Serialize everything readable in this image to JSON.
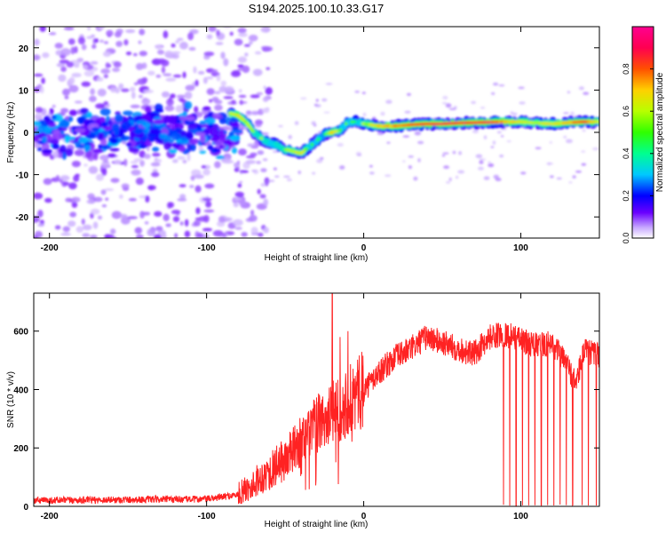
{
  "title": "S194.2025.100.10.33.G17",
  "chart_data": [
    {
      "type": "heatmap",
      "xlabel": "Height of straight line (km)",
      "ylabel": "Frequency (Hz)",
      "xlim": [
        -210,
        150
      ],
      "ylim": [
        -25,
        25
      ],
      "xticks": [
        -200,
        -100,
        0,
        100
      ],
      "yticks": [
        -20,
        -10,
        0,
        10,
        20
      ],
      "colorbar": {
        "label": "Normalized spectral amplitude",
        "range": [
          0,
          1
        ],
        "ticks": [
          "0.0",
          "0.2",
          "0.4",
          "0.6",
          "0.8"
        ],
        "colors": [
          "#ffffff",
          "#b388ff",
          "#5b00ff",
          "#0000ff",
          "#00ccff",
          "#00ff88",
          "#33ff00",
          "#ccff00",
          "#ffcc00",
          "#ff4400",
          "#ff0066",
          "#ff00aa"
        ]
      },
      "ridge": {
        "x": [
          -85,
          -80,
          -75,
          -70,
          -65,
          -60,
          -55,
          -50,
          -45,
          -40,
          -35,
          -30,
          -25,
          -20,
          -15,
          -10,
          -5,
          0,
          10,
          20,
          30,
          40,
          50,
          60,
          70,
          80,
          90,
          100,
          110,
          120,
          130,
          140,
          150
        ],
        "freq": [
          4.5,
          4.0,
          2.5,
          0.0,
          -1.5,
          -2.5,
          -3.0,
          -4.0,
          -4.5,
          -5.0,
          -3.5,
          -2.0,
          -0.5,
          0.0,
          0.5,
          2.5,
          2.5,
          2.0,
          1.5,
          1.5,
          1.8,
          2.0,
          2.0,
          2.2,
          2.3,
          2.4,
          2.5,
          2.5,
          2.2,
          2.0,
          2.3,
          2.5,
          2.5
        ],
        "amplitude": [
          0.6,
          0.65,
          0.6,
          0.55,
          0.55,
          0.5,
          0.5,
          0.55,
          0.6,
          0.65,
          0.5,
          0.45,
          0.4,
          0.75,
          0.5,
          0.5,
          0.45,
          0.55,
          0.7,
          0.75,
          0.8,
          0.85,
          0.9,
          0.9,
          0.85,
          0.9,
          0.7,
          0.65,
          0.6,
          0.65,
          0.7,
          0.85,
          0.6
        ]
      },
      "noise": {
        "band_x": [
          -210,
          -80
        ],
        "band_freq": [
          -7,
          7
        ],
        "band_amplitude": 0.22
      }
    },
    {
      "type": "line",
      "xlabel": "Height of straight line (km)",
      "ylabel": "SNR (10 * v/v)",
      "xlim": [
        -210,
        150
      ],
      "ylim": [
        0,
        730
      ],
      "xticks": [
        -200,
        -100,
        0,
        100
      ],
      "yticks": [
        0,
        200,
        400,
        600
      ],
      "color": "#ff2222",
      "series": [
        {
          "x": [
            -210,
            -100,
            -80,
            -70,
            -60,
            -50,
            -40,
            -30,
            -20,
            -10,
            0,
            10,
            20,
            30,
            40,
            50,
            60,
            70,
            80,
            90,
            100,
            110,
            120,
            130,
            135,
            140,
            150
          ],
          "values": [
            20,
            25,
            40,
            80,
            120,
            160,
            220,
            280,
            320,
            360,
            400,
            460,
            510,
            540,
            580,
            560,
            540,
            520,
            580,
            590,
            570,
            550,
            560,
            480,
            420,
            530,
            520
          ]
        }
      ],
      "spikes": {
        "x": [
          -20,
          -15,
          -10
        ],
        "values": [
          730,
          580,
          600
        ]
      },
      "dropouts": {
        "x": [
          89,
          93,
          97,
          101,
          105,
          109,
          113,
          117,
          121,
          125,
          129,
          133,
          139,
          143,
          148
        ],
        "values": [
          0,
          0,
          0,
          0,
          0,
          0,
          0,
          0,
          0,
          0,
          0,
          0,
          0,
          0,
          0
        ]
      }
    }
  ]
}
